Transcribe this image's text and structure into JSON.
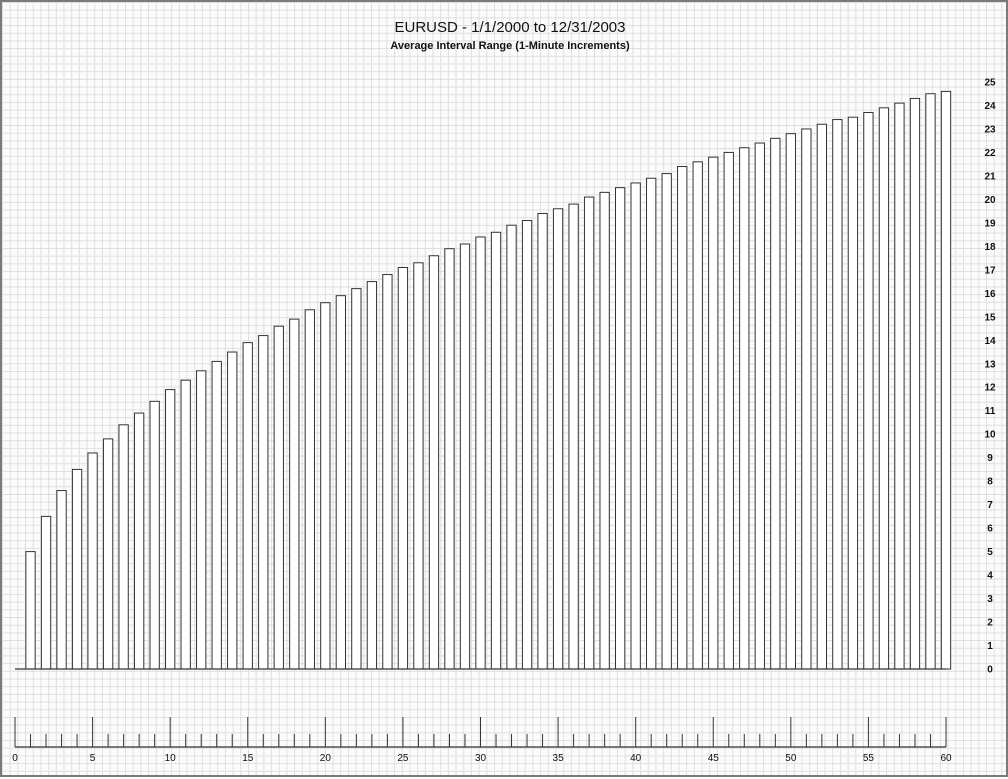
{
  "chart_data": {
    "type": "bar",
    "title": "EURUSD - 1/1/2000 to 12/31/2003",
    "subtitle": "Average Interval Range (1-Minute Increments)",
    "xlabel": "",
    "ylabel": "",
    "x": [
      1,
      2,
      3,
      4,
      5,
      6,
      7,
      8,
      9,
      10,
      11,
      12,
      13,
      14,
      15,
      16,
      17,
      18,
      19,
      20,
      21,
      22,
      23,
      24,
      25,
      26,
      27,
      28,
      29,
      30,
      31,
      32,
      33,
      34,
      35,
      36,
      37,
      38,
      39,
      40,
      41,
      42,
      43,
      44,
      45,
      46,
      47,
      48,
      49,
      50,
      51,
      52,
      53,
      54,
      55,
      56,
      57,
      58,
      59,
      60
    ],
    "values": [
      5.0,
      6.5,
      7.6,
      8.5,
      9.2,
      9.8,
      10.4,
      10.9,
      11.4,
      11.9,
      12.3,
      12.7,
      13.1,
      13.5,
      13.9,
      14.2,
      14.6,
      14.9,
      15.3,
      15.6,
      15.9,
      16.2,
      16.5,
      16.8,
      17.1,
      17.3,
      17.6,
      17.9,
      18.1,
      18.4,
      18.6,
      18.9,
      19.1,
      19.4,
      19.6,
      19.8,
      20.1,
      20.3,
      20.5,
      20.7,
      20.9,
      21.1,
      21.4,
      21.6,
      21.8,
      22.0,
      22.2,
      22.4,
      22.6,
      22.8,
      23.0,
      23.2,
      23.4,
      23.5,
      23.7,
      23.9,
      24.1,
      24.3,
      24.5,
      24.6
    ],
    "xlim": [
      0,
      60
    ],
    "ylim": [
      0,
      25
    ],
    "yticks": [
      "0",
      "1",
      "2",
      "3",
      "4",
      "5",
      "6",
      "7",
      "8",
      "9",
      "10",
      "11",
      "12",
      "13",
      "14",
      "15",
      "16",
      "17",
      "18",
      "19",
      "20",
      "21",
      "22",
      "23",
      "24",
      "25"
    ],
    "xticks": [
      "0",
      "5",
      "10",
      "15",
      "20",
      "25",
      "30",
      "35",
      "40",
      "45",
      "50",
      "55",
      "60"
    ],
    "grid": true,
    "colors": {
      "bar_fill": "#ffffff",
      "bar_stroke": "#333333",
      "grid": "#dedede",
      "border": "#7a7a7a"
    }
  }
}
